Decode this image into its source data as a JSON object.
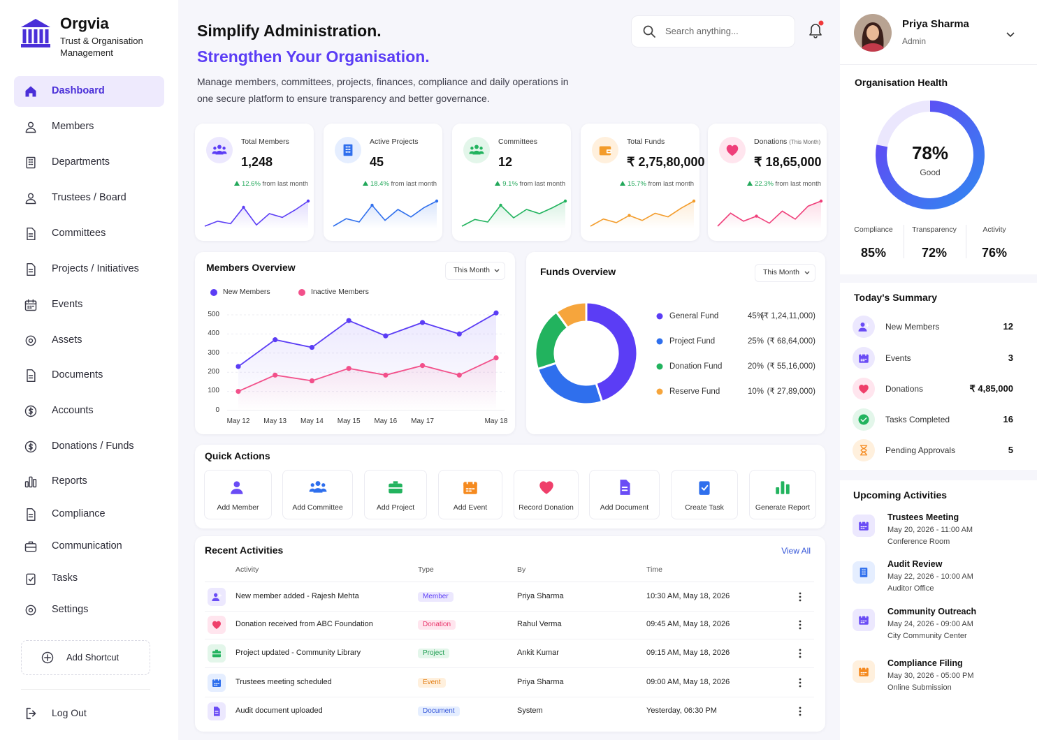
{
  "brand": {
    "name": "Orgvia",
    "tagline": "Trust & Organisation Management"
  },
  "nav": {
    "items": [
      "Dashboard",
      "Members",
      "Departments",
      "Trustees / Board",
      "Committees",
      "Projects / Initiatives",
      "Events",
      "Assets",
      "Documents",
      "Accounts",
      "Donations / Funds",
      "Reports",
      "Compliance",
      "Communication",
      "Tasks",
      "Settings"
    ],
    "active": 0,
    "shortcut": "Add Shortcut",
    "logout": "Log Out"
  },
  "header": {
    "title": "Simplify Administration.",
    "subtitle": "Strengthen Your Organisation.",
    "description": "Manage members, committees, projects, finances, compliance and daily operations in one secure platform to ensure transparency and better governance.",
    "search_placeholder": "Search anything..."
  },
  "user": {
    "name": "Priya Sharma",
    "role": "Admin"
  },
  "stats": [
    {
      "label": "Total Members",
      "value": "1,248",
      "change": "12.6%",
      "change_text": "from last month",
      "color": "#5b3df5",
      "trend": [
        30,
        34,
        32,
        45,
        31,
        40,
        37,
        43,
        50
      ]
    },
    {
      "label": "Active Projects",
      "value": "45",
      "change": "18.4%",
      "change_text": "from last month",
      "color": "#2f6fed",
      "trend": [
        25,
        34,
        30,
        50,
        32,
        45,
        36,
        47,
        55
      ]
    },
    {
      "label": "Committees",
      "value": "12",
      "change": "9.1%",
      "change_text": "from last month",
      "color": "#22b35e",
      "trend": [
        20,
        28,
        25,
        45,
        30,
        40,
        35,
        42,
        50
      ]
    },
    {
      "label": "Total Funds",
      "value": "₹ 2,75,80,000",
      "change": "15.7%",
      "change_text": "from last month",
      "color": "#f39c2b",
      "trend": [
        20,
        30,
        25,
        35,
        28,
        38,
        33,
        45,
        55
      ]
    },
    {
      "label": "Donations",
      "label_note": "(This Month)",
      "value": "₹ 18,65,000",
      "change": "22.3%",
      "change_text": "from last month",
      "color": "#ef3f7a",
      "trend": [
        25,
        38,
        30,
        35,
        28,
        40,
        32,
        45,
        50
      ]
    }
  ],
  "members_overview": {
    "type": "line",
    "title": "Members Overview",
    "period": "This Month",
    "categories": [
      "May 12",
      "May 13",
      "May 14",
      "May 15",
      "May 16",
      "May 17",
      null,
      "May 18"
    ],
    "series": [
      {
        "name": "New Members",
        "color": "#5b3df5",
        "values": [
          230,
          370,
          330,
          470,
          390,
          460,
          400,
          510
        ]
      },
      {
        "name": "Inactive Members",
        "color": "#f2508a",
        "values": [
          100,
          185,
          155,
          220,
          185,
          235,
          185,
          275
        ]
      }
    ],
    "ylim": [
      0,
      520
    ],
    "yticks": [
      0,
      100,
      200,
      300,
      400,
      500
    ],
    "grid": true
  },
  "funds_overview": {
    "type": "donut",
    "title": "Funds Overview",
    "period": "This Month",
    "categories": [
      "General Fund",
      "Project Fund",
      "Donation Fund",
      "Reserve Fund"
    ],
    "values": [
      45,
      25,
      20,
      10
    ],
    "value_labels": [
      "45%",
      "25%",
      "20%",
      "10%"
    ],
    "amounts": [
      "(₹ 1,24,11,000)",
      "(₹ 68,64,000)",
      "(₹ 55,16,000)",
      "(₹ 27,89,000)"
    ],
    "colors": [
      "#5b3df5",
      "#2f6fed",
      "#22b35e",
      "#f6a53c"
    ]
  },
  "quick_actions": {
    "title": "Quick Actions",
    "items": [
      "Add Member",
      "Add Committee",
      "Add Project",
      "Add Event",
      "Record Donation",
      "Add Document",
      "Create Task",
      "Generate Report"
    ]
  },
  "recent_activities": {
    "title": "Recent Activities",
    "view_all": "View All",
    "columns": [
      "Activity",
      "Type",
      "By",
      "Time"
    ],
    "rows": [
      [
        "New member added - Rajesh Mehta",
        "Member",
        "Priya Sharma",
        "10:30 AM, May 18, 2026"
      ],
      [
        "Donation received from ABC Foundation",
        "Donation",
        "Rahul Verma",
        "09:45 AM, May 18, 2026"
      ],
      [
        "Project updated - Community Library",
        "Project",
        "Ankit Kumar",
        "09:15 AM, May 18, 2026"
      ],
      [
        "Trustees meeting scheduled",
        "Event",
        "Priya Sharma",
        "09:00 AM, May 18, 2026"
      ],
      [
        "Audit document uploaded",
        "Document",
        "System",
        "Yesterday, 06:30 PM"
      ]
    ]
  },
  "organisation_health": {
    "title": "Organisation Health",
    "value": 78,
    "value_label": "78%",
    "status": "Good",
    "metrics": [
      {
        "name": "Compliance",
        "value": "85%"
      },
      {
        "name": "Transparency",
        "value": "72%"
      },
      {
        "name": "Activity",
        "value": "76%"
      }
    ]
  },
  "todays_summary": {
    "title": "Today's Summary",
    "items": [
      {
        "label": "New Members",
        "value": "12"
      },
      {
        "label": "Events",
        "value": "3"
      },
      {
        "label": "Donations",
        "value": "₹ 4,85,000"
      },
      {
        "label": "Tasks Completed",
        "value": "16"
      },
      {
        "label": "Pending Approvals",
        "value": "5"
      }
    ]
  },
  "upcoming_activities": {
    "title": "Upcoming Activities",
    "items": [
      {
        "title": "Trustees Meeting",
        "when": "May 20, 2026 - 11:00 AM",
        "where": "Conference Room"
      },
      {
        "title": "Audit Review",
        "when": "May 22, 2026 - 10:00 AM",
        "where": "Auditor Office"
      },
      {
        "title": "Community Outreach",
        "when": "May 24, 2026 - 09:00 AM",
        "where": "City Community Center"
      },
      {
        "title": "Compliance Filing",
        "when": "May 30, 2026 - 05:00 PM",
        "where": "Online Submission"
      }
    ]
  }
}
